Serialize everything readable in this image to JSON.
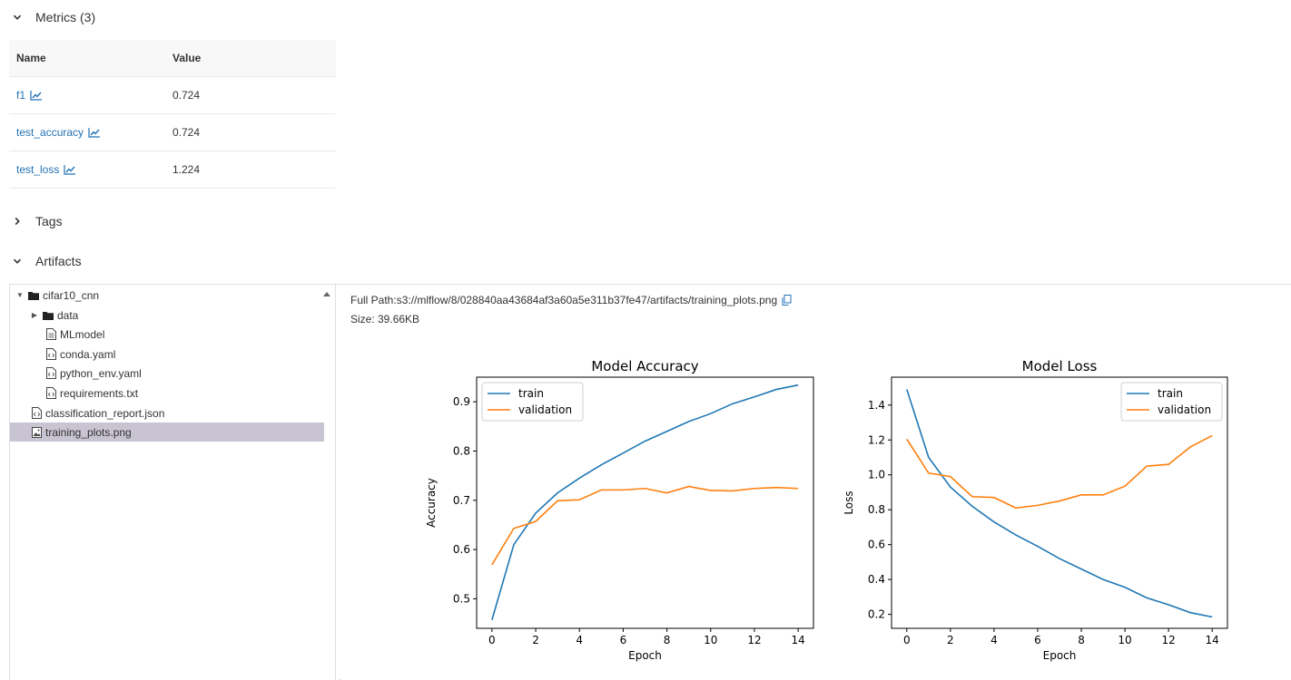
{
  "sections": {
    "metrics": {
      "label": "Metrics (3)"
    },
    "tags": {
      "label": "Tags"
    },
    "artifacts": {
      "label": "Artifacts"
    }
  },
  "metrics_table": {
    "col_name": "Name",
    "col_value": "Value",
    "rows": [
      {
        "name": "f1",
        "value": "0.724"
      },
      {
        "name": "test_accuracy",
        "value": "0.724"
      },
      {
        "name": "test_loss",
        "value": "1.224"
      }
    ]
  },
  "artifact_tree": {
    "items": [
      {
        "label": "cifar10_cnn",
        "type": "folder",
        "expanded": true
      },
      {
        "label": "data",
        "type": "folder",
        "expanded": false
      },
      {
        "label": "MLmodel",
        "type": "file"
      },
      {
        "label": "conda.yaml",
        "type": "file"
      },
      {
        "label": "python_env.yaml",
        "type": "file"
      },
      {
        "label": "requirements.txt",
        "type": "file"
      },
      {
        "label": "classification_report.json",
        "type": "file"
      },
      {
        "label": "training_plots.png",
        "type": "image",
        "selected": true
      }
    ]
  },
  "preview": {
    "full_path": "Full Path:s3://mlflow/8/028840aa43684af3a60a5e311b37fe47/artifacts/training_plots.png",
    "size": "Size: 39.66KB"
  },
  "colors": {
    "link": "#2272b4",
    "selected_row": "#c8c4d2",
    "train_line": "#1f77b4",
    "validation_line": "#ff7f0e"
  },
  "chart_data": [
    {
      "type": "line",
      "title": "Model Accuracy",
      "xlabel": "Epoch",
      "ylabel": "Accuracy",
      "xlim": [
        -0.7,
        14.7
      ],
      "ylim": [
        0.44,
        0.95
      ],
      "x_ticks": [
        "0",
        "2",
        "4",
        "6",
        "8",
        "10",
        "12",
        "14"
      ],
      "y_ticks": [
        "0.5",
        "0.6",
        "0.7",
        "0.8",
        "0.9"
      ],
      "legend": "upper-left",
      "x": [
        0,
        1,
        2,
        3,
        4,
        5,
        6,
        7,
        8,
        9,
        10,
        11,
        12,
        13,
        14
      ],
      "series": [
        {
          "name": "train",
          "values": [
            0.457,
            0.61,
            0.674,
            0.715,
            0.745,
            0.772,
            0.796,
            0.82,
            0.84,
            0.86,
            0.876,
            0.896,
            0.91,
            0.925,
            0.934
          ]
        },
        {
          "name": "validation",
          "values": [
            0.569,
            0.643,
            0.657,
            0.699,
            0.701,
            0.721,
            0.721,
            0.724,
            0.715,
            0.728,
            0.72,
            0.719,
            0.724,
            0.726,
            0.724
          ]
        }
      ]
    },
    {
      "type": "line",
      "title": "Model Loss",
      "xlabel": "Epoch",
      "ylabel": "Loss",
      "xlim": [
        -0.7,
        14.7
      ],
      "ylim": [
        0.12,
        1.56
      ],
      "x_ticks": [
        "0",
        "2",
        "4",
        "6",
        "8",
        "10",
        "12",
        "14"
      ],
      "y_ticks": [
        "0.2",
        "0.4",
        "0.6",
        "0.8",
        "1.0",
        "1.2",
        "1.4"
      ],
      "legend": "upper-right",
      "x": [
        0,
        1,
        2,
        3,
        4,
        5,
        6,
        7,
        8,
        9,
        10,
        11,
        12,
        13,
        14
      ],
      "series": [
        {
          "name": "train",
          "values": [
            1.49,
            1.1,
            0.93,
            0.82,
            0.73,
            0.655,
            0.59,
            0.52,
            0.46,
            0.4,
            0.355,
            0.295,
            0.255,
            0.21,
            0.185
          ]
        },
        {
          "name": "validation",
          "values": [
            1.205,
            1.01,
            0.99,
            0.875,
            0.87,
            0.81,
            0.825,
            0.85,
            0.885,
            0.885,
            0.935,
            1.05,
            1.06,
            1.16,
            1.225
          ]
        }
      ]
    }
  ]
}
